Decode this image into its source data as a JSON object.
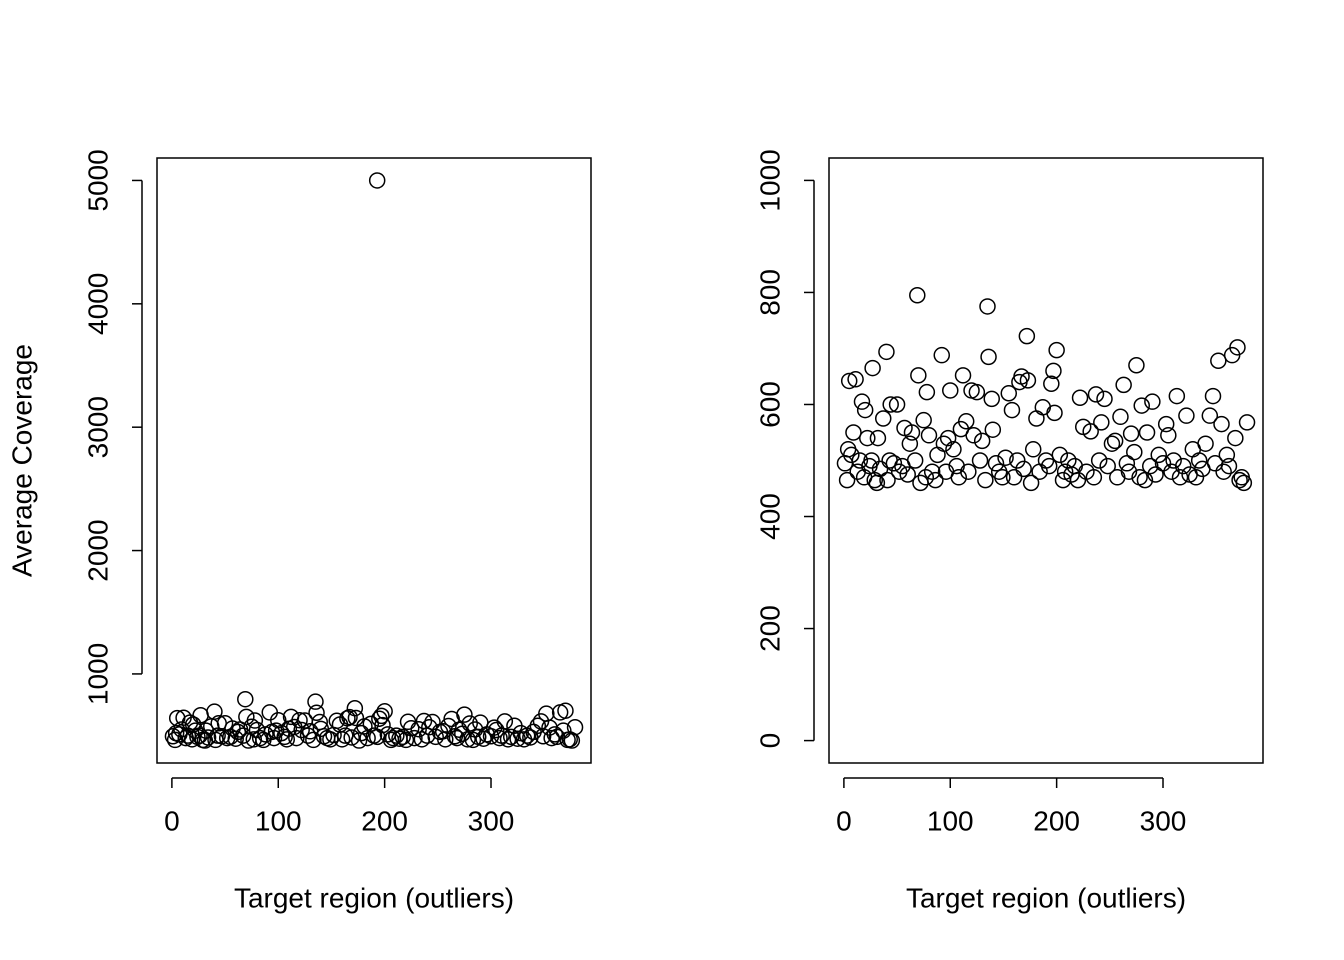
{
  "chart_data": [
    {
      "type": "scatter",
      "xlabel": "Target region (outliers)",
      "ylabel": "Average Coverage",
      "color": "#000000",
      "xlim": [
        -14,
        394
      ],
      "ylim": [
        278,
        5182
      ],
      "xticks": [
        0,
        100,
        200,
        300
      ],
      "yticks": [
        1000,
        2000,
        3000,
        4000,
        5000
      ],
      "x": [
        1,
        3,
        4,
        5,
        7,
        9,
        11,
        13,
        15,
        17,
        19,
        20,
        22,
        24,
        26,
        27,
        29,
        31,
        32,
        34,
        37,
        40,
        41,
        43,
        44,
        47,
        50,
        52,
        55,
        57,
        60,
        62,
        64,
        67,
        69,
        70,
        72,
        75,
        77,
        78,
        80,
        83,
        86,
        88,
        92,
        94,
        96,
        98,
        100,
        103,
        106,
        108,
        110,
        112,
        115,
        117,
        120,
        122,
        125,
        128,
        130,
        133,
        135,
        136,
        139,
        140,
        143,
        146,
        149,
        152,
        155,
        158,
        160,
        163,
        165,
        167,
        169,
        172,
        173,
        176,
        178,
        181,
        184,
        187,
        190,
        193,
        195,
        197,
        198,
        200,
        203,
        206,
        208,
        211,
        214,
        217,
        220,
        222,
        225,
        228,
        232,
        235,
        237,
        240,
        242,
        245,
        248,
        252,
        255,
        257,
        260,
        263,
        266,
        268,
        270,
        273,
        275,
        278,
        280,
        283,
        285,
        288,
        290,
        293,
        296,
        300,
        303,
        305,
        308,
        310,
        313,
        316,
        319,
        322,
        325,
        328,
        331,
        334,
        337,
        340,
        344,
        347,
        349,
        352,
        355,
        357,
        360,
        362,
        365,
        368,
        370,
        372,
        374,
        376,
        379,
        193
      ],
      "y": [
        495,
        465,
        520,
        642,
        510,
        550,
        645,
        480,
        500,
        605,
        470,
        590,
        540,
        490,
        500,
        665,
        465,
        460,
        540,
        485,
        575,
        694,
        465,
        500,
        600,
        495,
        600,
        480,
        490,
        558,
        475,
        530,
        550,
        500,
        795,
        652,
        460,
        572,
        470,
        622,
        545,
        480,
        465,
        510,
        688,
        530,
        480,
        540,
        625,
        520,
        490,
        470,
        556,
        652,
        570,
        480,
        625,
        545,
        622,
        500,
        535,
        465,
        775,
        685,
        610,
        555,
        495,
        480,
        470,
        505,
        620,
        590,
        470,
        500,
        640,
        650,
        485,
        722,
        643,
        460,
        520,
        575,
        480,
        595,
        500,
        490,
        637,
        660,
        585,
        697,
        510,
        465,
        480,
        500,
        475,
        490,
        465,
        612,
        560,
        480,
        552,
        470,
        618,
        500,
        568,
        610,
        490,
        530,
        535,
        470,
        578,
        635,
        495,
        480,
        548,
        515,
        670,
        470,
        598,
        465,
        550,
        490,
        605,
        475,
        510,
        495,
        565,
        545,
        480,
        500,
        615,
        470,
        490,
        580,
        475,
        520,
        470,
        500,
        485,
        530,
        580,
        615,
        495,
        678,
        565,
        480,
        510,
        490,
        688,
        540,
        702,
        465,
        470,
        460,
        568,
        5000
      ]
    },
    {
      "type": "scatter",
      "xlabel": "Target region (outliers)",
      "color": "#000000",
      "xlim": [
        -14,
        394
      ],
      "ylim": [
        -40,
        1040
      ],
      "xticks": [
        0,
        100,
        200,
        300
      ],
      "yticks": [
        0,
        200,
        400,
        600,
        800,
        1000
      ],
      "x": [
        1,
        3,
        4,
        5,
        7,
        9,
        11,
        13,
        15,
        17,
        19,
        20,
        22,
        24,
        26,
        27,
        29,
        31,
        32,
        34,
        37,
        40,
        41,
        43,
        44,
        47,
        50,
        52,
        55,
        57,
        60,
        62,
        64,
        67,
        69,
        70,
        72,
        75,
        77,
        78,
        80,
        83,
        86,
        88,
        92,
        94,
        96,
        98,
        100,
        103,
        106,
        108,
        110,
        112,
        115,
        117,
        120,
        122,
        125,
        128,
        130,
        133,
        135,
        136,
        139,
        140,
        143,
        146,
        149,
        152,
        155,
        158,
        160,
        163,
        165,
        167,
        169,
        172,
        173,
        176,
        178,
        181,
        184,
        187,
        190,
        193,
        195,
        197,
        198,
        200,
        203,
        206,
        208,
        211,
        214,
        217,
        220,
        222,
        225,
        228,
        232,
        235,
        237,
        240,
        242,
        245,
        248,
        252,
        255,
        257,
        260,
        263,
        266,
        268,
        270,
        273,
        275,
        278,
        280,
        283,
        285,
        288,
        290,
        293,
        296,
        300,
        303,
        305,
        308,
        310,
        313,
        316,
        319,
        322,
        325,
        328,
        331,
        334,
        337,
        340,
        344,
        347,
        349,
        352,
        355,
        357,
        360,
        362,
        365,
        368,
        370,
        372,
        374,
        376,
        379
      ],
      "y": [
        495,
        465,
        520,
        642,
        510,
        550,
        645,
        480,
        500,
        605,
        470,
        590,
        540,
        490,
        500,
        665,
        465,
        460,
        540,
        485,
        575,
        694,
        465,
        500,
        600,
        495,
        600,
        480,
        490,
        558,
        475,
        530,
        550,
        500,
        795,
        652,
        460,
        572,
        470,
        622,
        545,
        480,
        465,
        510,
        688,
        530,
        480,
        540,
        625,
        520,
        490,
        470,
        556,
        652,
        570,
        480,
        625,
        545,
        622,
        500,
        535,
        465,
        775,
        685,
        610,
        555,
        495,
        480,
        470,
        505,
        620,
        590,
        470,
        500,
        640,
        650,
        485,
        722,
        643,
        460,
        520,
        575,
        480,
        595,
        500,
        490,
        637,
        660,
        585,
        697,
        510,
        465,
        480,
        500,
        475,
        490,
        465,
        612,
        560,
        480,
        552,
        470,
        618,
        500,
        568,
        610,
        490,
        530,
        535,
        470,
        578,
        635,
        495,
        480,
        548,
        515,
        670,
        470,
        598,
        465,
        550,
        490,
        605,
        475,
        510,
        495,
        565,
        545,
        480,
        500,
        615,
        470,
        490,
        580,
        475,
        520,
        470,
        500,
        485,
        530,
        580,
        615,
        495,
        678,
        565,
        480,
        510,
        490,
        688,
        540,
        702,
        465,
        470,
        460,
        568
      ]
    }
  ]
}
